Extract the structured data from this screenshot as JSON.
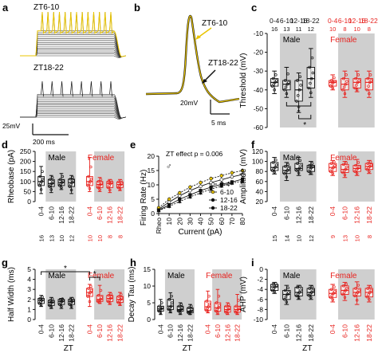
{
  "panels": {
    "a": {
      "letter": "a",
      "label_top": "ZT6-10",
      "label_bottom": "ZT18-22",
      "scale_v": "25mV",
      "scale_t": "200 ms"
    },
    "b": {
      "letter": "b",
      "label_top": "ZT6-10",
      "label_bottom": "ZT18-22",
      "scale_v": "20mV",
      "scale_t": "5 ms"
    },
    "c": {
      "letter": "c",
      "ylabel": "Threshold (mV)",
      "male": "Male",
      "female": "Female",
      "ticks": [
        "-10",
        "-20",
        "-30",
        "-40",
        "-50",
        "-60"
      ],
      "groups": [
        "0-4",
        "6-10",
        "12-16",
        "18-22",
        "0-4",
        "6-10",
        "12-16",
        "18-22"
      ],
      "n": [
        "16",
        "13",
        "11",
        "12",
        "10",
        "8",
        "10",
        "8"
      ],
      "sig": "*"
    },
    "d": {
      "letter": "d",
      "ylabel": "Rheobase (pA)",
      "male": "Male",
      "female": "Female",
      "ticks": [
        "250",
        "200",
        "150",
        "100",
        "50",
        "0"
      ],
      "groups": [
        "0-4",
        "6-10",
        "12-16",
        "18-22",
        "0-4",
        "6-10",
        "12-16",
        "18-22"
      ],
      "n": [
        "16",
        "13",
        "10",
        "12",
        "10",
        "10",
        "8",
        "8"
      ]
    },
    "e": {
      "letter": "e",
      "ylabel": "Firing Rate (Hz)",
      "xlabel": "Current (pA)",
      "annot": "ZT effect p = 0.006",
      "sex": "♂",
      "yticks": [
        "20",
        "15",
        "10",
        "5",
        "0"
      ],
      "xticks": [
        "Rheo",
        "10",
        "20",
        "30",
        "40",
        "50",
        "60",
        "70",
        "80"
      ],
      "legend": [
        "0-4",
        "6-10",
        "12-16",
        "18-22"
      ]
    },
    "f": {
      "letter": "f",
      "ylabel": "Amplitude (mV)",
      "male": "Male",
      "female": "Female",
      "ticks": [
        "120",
        "100",
        "80",
        "60",
        "40",
        "20"
      ],
      "groups": [
        "0-4",
        "6-10",
        "12-16",
        "18-22",
        "0-4",
        "6-10",
        "12-16",
        "18-22"
      ],
      "n": [
        "15",
        "14",
        "10",
        "12",
        "9",
        "13",
        "10",
        "8"
      ]
    },
    "g": {
      "letter": "g",
      "ylabel": "Half Width (ms)",
      "xlabel": "ZT",
      "male": "Male",
      "female": "Female",
      "ticks": [
        "5",
        "4",
        "3",
        "2",
        "1",
        "0"
      ],
      "groups": [
        "0-4",
        "6-10",
        "12-16",
        "18-22",
        "0-4",
        "6-10",
        "12-16",
        "18-22"
      ],
      "n": [
        "16",
        "13",
        "10",
        "12",
        "9",
        "13",
        "10",
        "8"
      ],
      "sig1": "*",
      "sig2": "*"
    },
    "h": {
      "letter": "h",
      "ylabel": "Decay Tau (ms)",
      "xlabel": "ZT",
      "male": "Male",
      "female": "Female",
      "ticks": [
        "15",
        "10",
        "5",
        "0"
      ],
      "groups": [
        "0-4",
        "6-10",
        "12-16",
        "18-22",
        "0-4",
        "6-10",
        "12-16",
        "18-22"
      ],
      "n": [
        "16",
        "13",
        "11",
        "12",
        "8",
        "13",
        "10",
        "8"
      ]
    },
    "i": {
      "letter": "i",
      "ylabel": "AHP (mV)",
      "xlabel": "ZT",
      "male": "Male",
      "female": "Female",
      "ticks": [
        "0",
        "-2",
        "-4",
        "-6",
        "-8",
        "-10"
      ],
      "groups": [
        "0-4",
        "6-10",
        "12-16",
        "18-22",
        "0-4",
        "6-10",
        "12-16",
        "18-22"
      ],
      "n": [
        "16",
        "13",
        "11",
        "12",
        "8",
        "13",
        "10",
        "8"
      ]
    }
  },
  "colors": {
    "male": "#111111",
    "female": "#e8231f",
    "shade": "#cfcfcf",
    "trace_highlight": "#e9c400"
  },
  "box_data": {
    "c": [
      [
        -42,
        -38,
        -36,
        -34,
        -30
      ],
      [
        -44,
        -40,
        -37,
        -35,
        -28
      ],
      [
        -52,
        -46,
        -40,
        -35,
        -31
      ],
      [
        -44,
        -39,
        -34,
        -28,
        -18
      ],
      [
        -40,
        -38,
        -36,
        -35,
        -32
      ],
      [
        -44,
        -40,
        -37,
        -34,
        -30
      ],
      [
        -41,
        -39,
        -36,
        -34,
        -30
      ],
      [
        -44,
        -40,
        -36,
        -34,
        -30
      ]
    ],
    "d": [
      [
        40,
        80,
        100,
        125,
        175
      ],
      [
        45,
        75,
        90,
        110,
        130
      ],
      [
        60,
        80,
        95,
        110,
        140
      ],
      [
        40,
        75,
        95,
        112,
        130
      ],
      [
        50,
        80,
        100,
        125,
        220
      ],
      [
        50,
        70,
        85,
        100,
        120
      ],
      [
        45,
        70,
        90,
        100,
        110
      ],
      [
        55,
        70,
        85,
        98,
        110
      ]
    ],
    "f": [
      [
        75,
        82,
        88,
        98,
        108
      ],
      [
        62,
        76,
        82,
        90,
        98
      ],
      [
        72,
        82,
        86,
        96,
        108
      ],
      [
        74,
        80,
        88,
        92,
        100
      ],
      [
        72,
        80,
        88,
        96,
        102
      ],
      [
        68,
        78,
        84,
        94,
        100
      ],
      [
        72,
        80,
        86,
        92,
        104
      ],
      [
        76,
        84,
        90,
        96,
        102
      ]
    ],
    "g": [
      [
        1.3,
        1.6,
        1.9,
        2.1,
        2.4
      ],
      [
        1.1,
        1.4,
        1.7,
        1.9,
        2.2
      ],
      [
        1.1,
        1.5,
        1.8,
        2.0,
        2.1
      ],
      [
        1.1,
        1.5,
        1.8,
        2.0,
        2.2
      ],
      [
        1.3,
        2.3,
        2.7,
        3.1,
        3.5
      ],
      [
        1.6,
        1.8,
        2.0,
        2.4,
        3.4
      ],
      [
        1.5,
        1.8,
        2.1,
        2.4,
        2.7
      ],
      [
        1.4,
        1.7,
        2.0,
        2.3,
        2.7
      ]
    ],
    "h": [
      [
        1.5,
        2.5,
        3.2,
        4.0,
        6.0
      ],
      [
        2.0,
        3.0,
        4.0,
        6.0,
        8.0
      ],
      [
        1.5,
        2.5,
        3.0,
        4.0,
        5.0
      ],
      [
        1.5,
        2.0,
        2.5,
        3.5,
        4.5
      ],
      [
        2.0,
        2.8,
        3.8,
        5.5,
        8.5
      ],
      [
        1.5,
        2.5,
        3.5,
        5.0,
        9.0
      ],
      [
        1.5,
        2.2,
        3.0,
        4.0,
        5.0
      ],
      [
        1.5,
        2.2,
        3.0,
        4.0,
        7.5
      ]
    ],
    "i": [
      [
        -4.8,
        -4.2,
        -3.5,
        -3.0,
        -2.6
      ],
      [
        -7.0,
        -6.0,
        -5.0,
        -4.2,
        -3.2
      ],
      [
        -6.0,
        -5.3,
        -4.6,
        -3.6,
        -3.2
      ],
      [
        -6.0,
        -5.2,
        -4.6,
        -3.8,
        -3.2
      ],
      [
        -6.5,
        -5.6,
        -4.8,
        -4.0,
        -3.0
      ],
      [
        -6.2,
        -5.0,
        -4.2,
        -3.3,
        -2.6
      ],
      [
        -7.0,
        -5.3,
        -4.6,
        -3.8,
        -2.5
      ],
      [
        -6.5,
        -5.5,
        -4.6,
        -3.8,
        -3.2
      ]
    ]
  },
  "chart_data": [
    {
      "type": "line",
      "panel": "e",
      "title": "",
      "xlabel": "Current (pA)",
      "ylabel": "Firing Rate (Hz)",
      "x": [
        0,
        10,
        20,
        30,
        40,
        50,
        60,
        70,
        80
      ],
      "ylim": [
        0,
        20
      ],
      "series": [
        {
          "name": "0-4",
          "values": [
            1.5,
            4.0,
            6.2,
            8.0,
            9.5,
            10.8,
            11.8,
            12.8,
            13.6
          ]
        },
        {
          "name": "6-10",
          "values": [
            2.0,
            5.0,
            7.2,
            9.2,
            10.8,
            12.2,
            13.2,
            14.2,
            15.0
          ]
        },
        {
          "name": "12-16",
          "values": [
            1.2,
            3.0,
            5.0,
            6.5,
            8.0,
            9.2,
            10.2,
            11.0,
            12.0
          ]
        },
        {
          "name": "18-22",
          "values": [
            1.0,
            2.5,
            4.2,
            5.8,
            7.2,
            8.5,
            9.6,
            10.6,
            11.3
          ]
        }
      ]
    }
  ]
}
